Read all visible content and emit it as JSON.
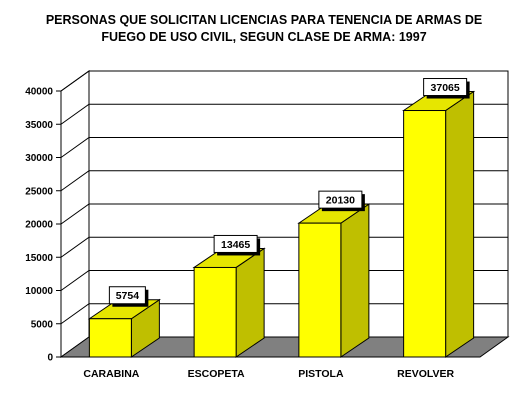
{
  "chart_data": {
    "type": "bar",
    "title_lines": [
      "PERSONAS QUE SOLICITAN LICENCIAS PARA TENENCIA DE ARMAS DE",
      "FUEGO DE USO CIVIL, SEGUN CLASE DE ARMA: 1997"
    ],
    "categories": [
      "CARABINA",
      "ESCOPETA",
      "PISTOLA",
      "REVOLVER"
    ],
    "values": [
      5754,
      13465,
      20130,
      37065
    ],
    "data_labels": [
      "5754",
      "13465",
      "20130",
      "37065"
    ],
    "yticks": [
      0,
      5000,
      10000,
      15000,
      20000,
      25000,
      30000,
      35000,
      40000
    ],
    "ylim": [
      0,
      40000
    ],
    "grid": true,
    "legend": "none",
    "three_d": true,
    "colors": {
      "bar_front": "#ffff00",
      "bar_side": "#bfbf00",
      "bar_top": "#e6e600",
      "floor": "#808080",
      "label_box": "#ffffff"
    }
  }
}
